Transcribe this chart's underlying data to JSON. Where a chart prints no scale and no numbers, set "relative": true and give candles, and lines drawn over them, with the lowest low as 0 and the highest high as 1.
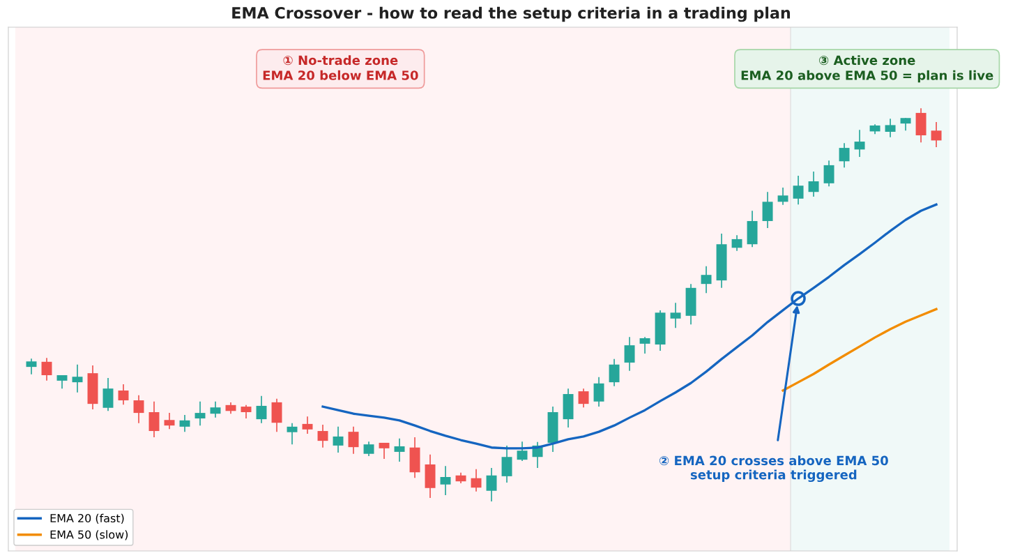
{
  "chart_data": {
    "type": "candlestick",
    "title": "EMA Crossover - how to read the setup criteria in a trading plan",
    "relative": true,
    "categories": [
      null,
      null,
      null,
      null,
      null,
      null,
      null,
      null,
      null,
      null,
      null,
      null,
      null,
      null,
      null,
      null,
      null,
      null,
      null,
      null,
      null,
      null,
      null,
      null,
      null,
      null,
      null,
      null,
      null,
      null,
      null,
      null,
      null,
      null,
      null,
      null,
      null,
      null,
      null,
      null,
      null,
      null,
      null,
      null,
      null,
      null,
      null,
      null,
      null,
      null,
      null,
      null,
      null,
      null,
      null,
      null,
      null,
      null,
      null,
      null
    ],
    "ohlc": [
      [
        0.342,
        0.363,
        0.323,
        0.356
      ],
      [
        0.355,
        0.365,
        0.307,
        0.321
      ],
      [
        0.307,
        0.321,
        0.287,
        0.321
      ],
      [
        0.303,
        0.348,
        0.277,
        0.317
      ],
      [
        0.326,
        0.346,
        0.234,
        0.248
      ],
      [
        0.238,
        0.314,
        0.23,
        0.287
      ],
      [
        0.282,
        0.298,
        0.246,
        0.257
      ],
      [
        0.257,
        0.27,
        0.199,
        0.225
      ],
      [
        0.227,
        0.254,
        0.163,
        0.179
      ],
      [
        0.207,
        0.225,
        0.184,
        0.193
      ],
      [
        0.19,
        0.22,
        0.177,
        0.206
      ],
      [
        0.211,
        0.254,
        0.193,
        0.225
      ],
      [
        0.223,
        0.254,
        0.213,
        0.239
      ],
      [
        0.245,
        0.252,
        0.223,
        0.23
      ],
      [
        0.241,
        0.245,
        0.211,
        0.227
      ],
      [
        0.209,
        0.268,
        0.199,
        0.243
      ],
      [
        0.252,
        0.261,
        0.177,
        0.2
      ],
      [
        0.176,
        0.199,
        0.145,
        0.19
      ],
      [
        0.197,
        0.216,
        0.172,
        0.183
      ],
      [
        0.179,
        0.195,
        0.137,
        0.154
      ],
      [
        0.142,
        0.19,
        0.124,
        0.165
      ],
      [
        0.177,
        0.19,
        0.121,
        0.138
      ],
      [
        0.121,
        0.152,
        0.115,
        0.145
      ],
      [
        0.149,
        0.149,
        0.108,
        0.135
      ],
      [
        0.126,
        0.16,
        0.101,
        0.14
      ],
      [
        0.137,
        0.163,
        0.06,
        0.074
      ],
      [
        0.094,
        0.119,
        0.009,
        0.034
      ],
      [
        0.043,
        0.09,
        0.016,
        0.062
      ],
      [
        0.066,
        0.073,
        0.046,
        0.051
      ],
      [
        0.059,
        0.082,
        0.025,
        0.035
      ],
      [
        0.027,
        0.085,
        0,
        0.066
      ],
      [
        0.064,
        0.142,
        0.048,
        0.113
      ],
      [
        0.106,
        0.152,
        0.103,
        0.129
      ],
      [
        0.113,
        0.151,
        0.085,
        0.142
      ],
      [
        0.149,
        0.241,
        0.126,
        0.227
      ],
      [
        0.209,
        0.287,
        0.188,
        0.273
      ],
      [
        0.28,
        0.287,
        0.239,
        0.248
      ],
      [
        0.254,
        0.316,
        0.241,
        0.3
      ],
      [
        0.303,
        0.362,
        0.293,
        0.348
      ],
      [
        0.353,
        0.418,
        0.332,
        0.397
      ],
      [
        0.401,
        0.418,
        0.376,
        0.415
      ],
      [
        0.399,
        0.486,
        0.383,
        0.48
      ],
      [
        0.465,
        0.505,
        0.441,
        0.48
      ],
      [
        0.472,
        0.553,
        0.45,
        0.543
      ],
      [
        0.553,
        0.598,
        0.53,
        0.576
      ],
      [
        0.562,
        0.681,
        0.543,
        0.654
      ],
      [
        0.645,
        0.677,
        0.637,
        0.667
      ],
      [
        0.654,
        0.739,
        0.647,
        0.713
      ],
      [
        0.713,
        0.787,
        0.695,
        0.762
      ],
      [
        0.762,
        0.798,
        0.754,
        0.778
      ],
      [
        0.77,
        0.828,
        0.755,
        0.803
      ],
      [
        0.787,
        0.839,
        0.775,
        0.814
      ],
      [
        0.809,
        0.867,
        0.801,
        0.855
      ],
      [
        0.865,
        0.911,
        0.849,
        0.899
      ],
      [
        0.895,
        0.945,
        0.876,
        0.915
      ],
      [
        0.941,
        0.959,
        0.934,
        0.956
      ],
      [
        0.94,
        0.973,
        0.926,
        0.957
      ],
      [
        0.961,
        0.975,
        0.943,
        0.975
      ],
      [
        0.988,
        1,
        0.913,
        0.931
      ],
      [
        0.943,
        0.965,
        0.901,
        0.918
      ]
    ],
    "colors": [
      "#26a69a",
      "#ef5350",
      "#26a69a",
      "#26a69a",
      "#ef5350",
      "#26a69a",
      "#ef5350",
      "#ef5350",
      "#ef5350",
      "#ef5350",
      "#26a69a",
      "#26a69a",
      "#26a69a",
      "#ef5350",
      "#ef5350",
      "#26a69a",
      "#ef5350",
      "#26a69a",
      "#ef5350",
      "#ef5350",
      "#26a69a",
      "#ef5350",
      "#26a69a",
      "#ef5350",
      "#26a69a",
      "#ef5350",
      "#ef5350",
      "#26a69a",
      "#ef5350",
      "#ef5350",
      "#26a69a",
      "#26a69a",
      "#26a69a",
      "#26a69a",
      "#26a69a",
      "#26a69a",
      "#ef5350",
      "#26a69a",
      "#26a69a",
      "#26a69a",
      "#26a69a",
      "#26a69a",
      "#26a69a",
      "#26a69a",
      "#26a69a",
      "#26a69a",
      "#26a69a",
      "#26a69a",
      "#26a69a",
      "#26a69a",
      "#26a69a",
      "#26a69a",
      "#26a69a",
      "#26a69a",
      "#26a69a",
      "#26a69a",
      "#26a69a",
      "#26a69a",
      "#ef5350",
      "#ef5350"
    ],
    "series": [
      {
        "name": "EMA 20 (fast)",
        "type": "line",
        "color": "#1565c0",
        "values": [
          null,
          null,
          null,
          null,
          null,
          null,
          null,
          null,
          null,
          null,
          null,
          null,
          null,
          null,
          null,
          null,
          null,
          null,
          null,
          0.241,
          0.232,
          0.223,
          0.218,
          0.213,
          0.206,
          0.193,
          0.179,
          0.167,
          0.156,
          0.147,
          0.137,
          0.135,
          0.135,
          0.137,
          0.147,
          0.158,
          0.165,
          0.177,
          0.193,
          0.213,
          0.232,
          0.255,
          0.277,
          0.301,
          0.33,
          0.362,
          0.392,
          0.422,
          0.456,
          0.486,
          0.516,
          0.543,
          0.571,
          0.601,
          0.629,
          0.658,
          0.688,
          0.716,
          0.739,
          0.755
        ]
      },
      {
        "name": "EMA 50 (slow)",
        "type": "line",
        "color": "#f28c00",
        "values": [
          null,
          null,
          null,
          null,
          null,
          null,
          null,
          null,
          null,
          null,
          null,
          null,
          null,
          null,
          null,
          null,
          null,
          null,
          null,
          null,
          null,
          null,
          null,
          null,
          null,
          null,
          null,
          null,
          null,
          null,
          null,
          null,
          null,
          null,
          null,
          null,
          null,
          null,
          null,
          null,
          null,
          null,
          null,
          null,
          null,
          null,
          null,
          null,
          null,
          0.282,
          0.303,
          0.324,
          0.348,
          0.371,
          0.394,
          0.417,
          0.438,
          0.457,
          0.473,
          0.489
        ]
      }
    ],
    "annotations": [
      "① No-trade zone\nEMA 20 below EMA 50",
      "② EMA 20 crosses above EMA 50\nsetup criteria triggered",
      "③ Active zone\nEMA 20 above EMA 50 = plan is live"
    ],
    "legend": "bottom left",
    "grid": false
  }
}
